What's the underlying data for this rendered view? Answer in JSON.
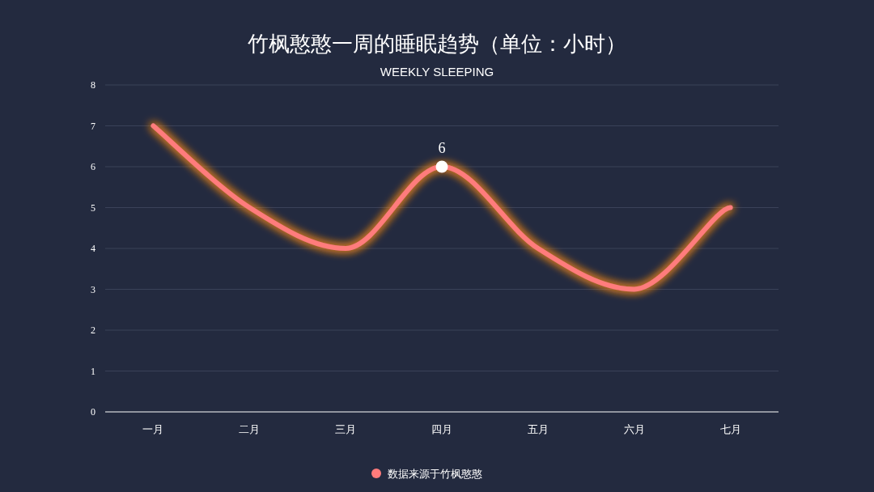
{
  "chart_data": {
    "type": "line",
    "title": "竹枫憨憨一周的睡眠趋势（单位：小时）",
    "subtitle": "WEEKLY SLEEPING",
    "categories": [
      "一月",
      "二月",
      "三月",
      "四月",
      "五月",
      "六月",
      "七月"
    ],
    "series": [
      {
        "name": "数据来源于竹枫憨憨",
        "color": "#ff7b7b",
        "marker": "none",
        "values": [
          7,
          5,
          4,
          6,
          4,
          3,
          5
        ]
      },
      {
        "type": "scatter",
        "color": "#ffffff",
        "marker": "circle",
        "x": [
          "四月"
        ],
        "values": [
          6
        ],
        "value_labels": [
          "6"
        ]
      }
    ],
    "ylim": [
      0,
      8
    ],
    "yticks": [
      0,
      1,
      2,
      3,
      4,
      5,
      6,
      7,
      8
    ],
    "grid": "y",
    "legend": "bottom"
  }
}
